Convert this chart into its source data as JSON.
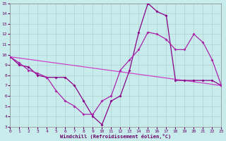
{
  "xlabel": "Windchill (Refroidissement éolien,°C)",
  "xlim": [
    0,
    23
  ],
  "ylim": [
    3,
    15
  ],
  "yticks": [
    3,
    4,
    5,
    6,
    7,
    8,
    9,
    10,
    11,
    12,
    13,
    14,
    15
  ],
  "xticks": [
    0,
    1,
    2,
    3,
    4,
    5,
    6,
    7,
    8,
    9,
    10,
    11,
    12,
    13,
    14,
    15,
    16,
    17,
    18,
    19,
    20,
    21,
    22,
    23
  ],
  "background_color": "#c8ecec",
  "grid_color": "#b0d0d0",
  "line_color_dark": "#880088",
  "line_color_mid": "#aa22aa",
  "line_color_light": "#cc44cc",
  "line1_x": [
    0,
    1,
    2,
    3,
    4,
    5,
    6,
    7,
    8,
    9,
    10,
    11,
    12,
    13,
    14,
    15,
    16,
    17,
    18,
    19,
    20,
    21,
    22,
    23
  ],
  "line1_y": [
    9.8,
    9.0,
    8.8,
    8.0,
    7.8,
    7.8,
    7.8,
    7.0,
    5.5,
    4.0,
    3.2,
    5.5,
    6.0,
    8.5,
    12.2,
    15.0,
    14.2,
    13.8,
    7.5,
    7.5,
    7.5,
    7.5,
    7.5,
    7.0
  ],
  "line2_x": [
    0,
    1,
    2,
    3,
    4,
    5,
    6,
    7,
    8,
    9,
    10,
    11,
    12,
    13,
    14,
    15,
    16,
    17,
    18,
    19,
    20,
    21,
    22,
    23
  ],
  "line2_y": [
    9.8,
    9.2,
    8.5,
    8.2,
    7.8,
    6.5,
    5.5,
    5.0,
    4.2,
    4.2,
    5.5,
    6.0,
    8.5,
    9.5,
    10.5,
    12.2,
    12.0,
    11.5,
    10.5,
    10.5,
    12.0,
    11.2,
    9.5,
    7.0
  ],
  "line3_x": [
    0,
    23
  ],
  "line3_y": [
    9.8,
    7.0
  ]
}
